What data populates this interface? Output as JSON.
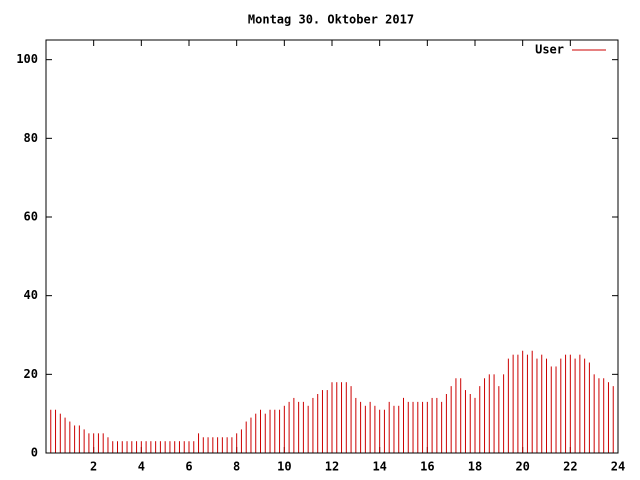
{
  "chart_data": {
    "type": "impulse",
    "title": "Montag 30. Oktober 2017",
    "x": [
      0,
      0.2,
      0.4,
      0.6,
      0.8,
      1,
      1.2,
      1.4,
      1.6,
      1.8,
      2,
      2.2,
      2.4,
      2.6,
      2.8,
      3,
      3.2,
      3.4,
      3.6,
      3.8,
      4,
      4.2,
      4.4,
      4.6,
      4.8,
      5,
      5.2,
      5.4,
      5.6,
      5.8,
      6,
      6.2,
      6.4,
      6.6,
      6.8,
      7,
      7.2,
      7.4,
      7.6,
      7.8,
      8,
      8.2,
      8.4,
      8.6,
      8.8,
      9,
      9.2,
      9.4,
      9.6,
      9.8,
      10,
      10.2,
      10.4,
      10.6,
      10.8,
      11,
      11.2,
      11.4,
      11.6,
      11.8,
      12,
      12.2,
      12.4,
      12.6,
      12.8,
      13,
      13.2,
      13.4,
      13.6,
      13.8,
      14,
      14.2,
      14.4,
      14.6,
      14.8,
      15,
      15.2,
      15.4,
      15.6,
      15.8,
      16,
      16.2,
      16.4,
      16.6,
      16.8,
      17,
      17.2,
      17.4,
      17.6,
      17.8,
      18,
      18.2,
      18.4,
      18.6,
      18.8,
      19,
      19.2,
      19.4,
      19.6,
      19.8,
      20,
      20.2,
      20.4,
      20.6,
      20.8,
      21,
      21.2,
      21.4,
      21.6,
      21.8,
      22,
      22.2,
      22.4,
      22.6,
      22.8,
      23,
      23.2,
      23.4,
      23.6,
      23.8,
      24
    ],
    "series": [
      {
        "name": "User",
        "color": "#cc0000",
        "values": [
          12,
          11,
          11,
          10,
          9,
          8,
          7,
          7,
          6,
          5,
          5,
          5,
          5,
          4,
          3,
          3,
          3,
          3,
          3,
          3,
          3,
          3,
          3,
          3,
          3,
          3,
          3,
          3,
          3,
          3,
          3,
          3,
          5,
          4,
          4,
          4,
          4,
          4,
          4,
          4,
          5,
          6,
          8,
          9,
          10,
          11,
          10,
          11,
          11,
          11,
          12,
          13,
          14,
          13,
          13,
          12,
          14,
          15,
          16,
          16,
          18,
          18,
          18,
          18,
          17,
          14,
          13,
          12,
          13,
          12,
          11,
          11,
          13,
          12,
          12,
          14,
          13,
          13,
          13,
          13,
          13,
          14,
          14,
          13,
          15,
          17,
          19,
          19,
          16,
          15,
          14,
          17,
          19,
          20,
          20,
          17,
          20,
          24,
          25,
          25,
          26,
          25,
          26,
          24,
          25,
          24,
          22,
          22,
          24,
          25,
          25,
          24,
          25,
          24,
          23,
          20,
          19,
          19,
          18,
          17,
          17
        ]
      }
    ],
    "xlim": [
      0,
      24
    ],
    "xticks": [
      2,
      4,
      6,
      8,
      10,
      12,
      14,
      16,
      18,
      20,
      22,
      24
    ],
    "ylim": [
      0,
      105
    ],
    "yticks": [
      0,
      20,
      40,
      60,
      80,
      100
    ],
    "grid": false,
    "legend_position": "top-right"
  }
}
